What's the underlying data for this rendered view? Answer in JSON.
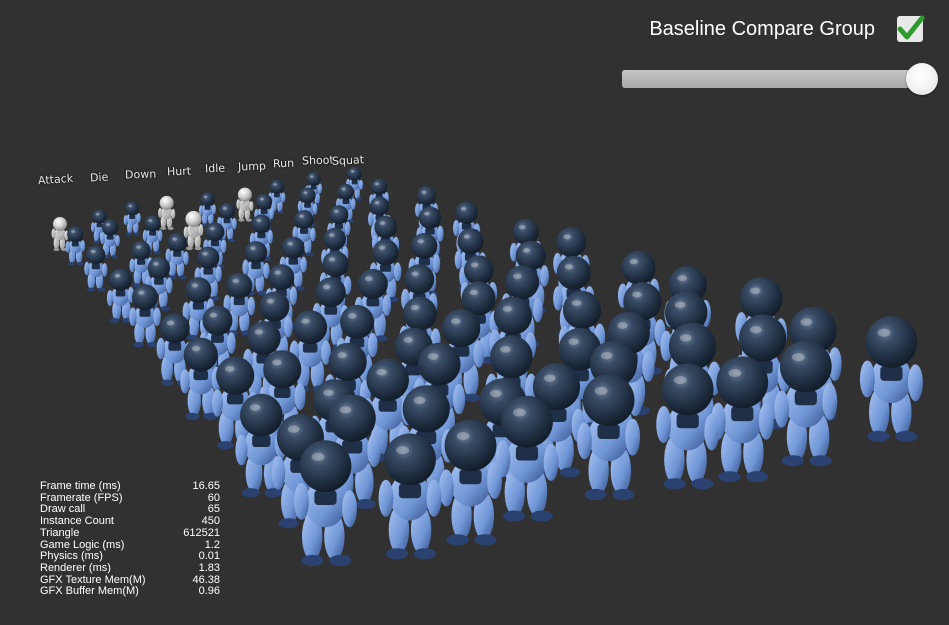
{
  "controls": {
    "compare_label": "Baseline Compare Group",
    "compare_checked": true,
    "slider_value": 1.0,
    "check_color": "#2e9b2e"
  },
  "animation_labels": [
    "Attack",
    "Die",
    "Down",
    "Hurt",
    "Idle",
    "Jump",
    "Run",
    "Shoot",
    "Squat"
  ],
  "stats": [
    {
      "label": "Frame time (ms)",
      "value": "16.65"
    },
    {
      "label": "Framerate (FPS)",
      "value": "60"
    },
    {
      "label": "Draw call",
      "value": "65"
    },
    {
      "label": "Instance Count",
      "value": "450"
    },
    {
      "label": "Triangle",
      "value": "612521"
    },
    {
      "label": "Game Logic (ms)",
      "value": "1.2"
    },
    {
      "label": "Physics (ms)",
      "value": "0.01"
    },
    {
      "label": "Renderer (ms)",
      "value": "1.83"
    },
    {
      "label": "GFX Texture Mem(M)",
      "value": "46.38"
    },
    {
      "label": "GFX Buffer Mem(M)",
      "value": "0.96"
    }
  ],
  "scene": {
    "background": "#313131",
    "helmet_color": "#25354a",
    "body_color": "#8fb0e8",
    "body_dark": "#39588f",
    "white_variant_color": "#e6e6e6"
  }
}
